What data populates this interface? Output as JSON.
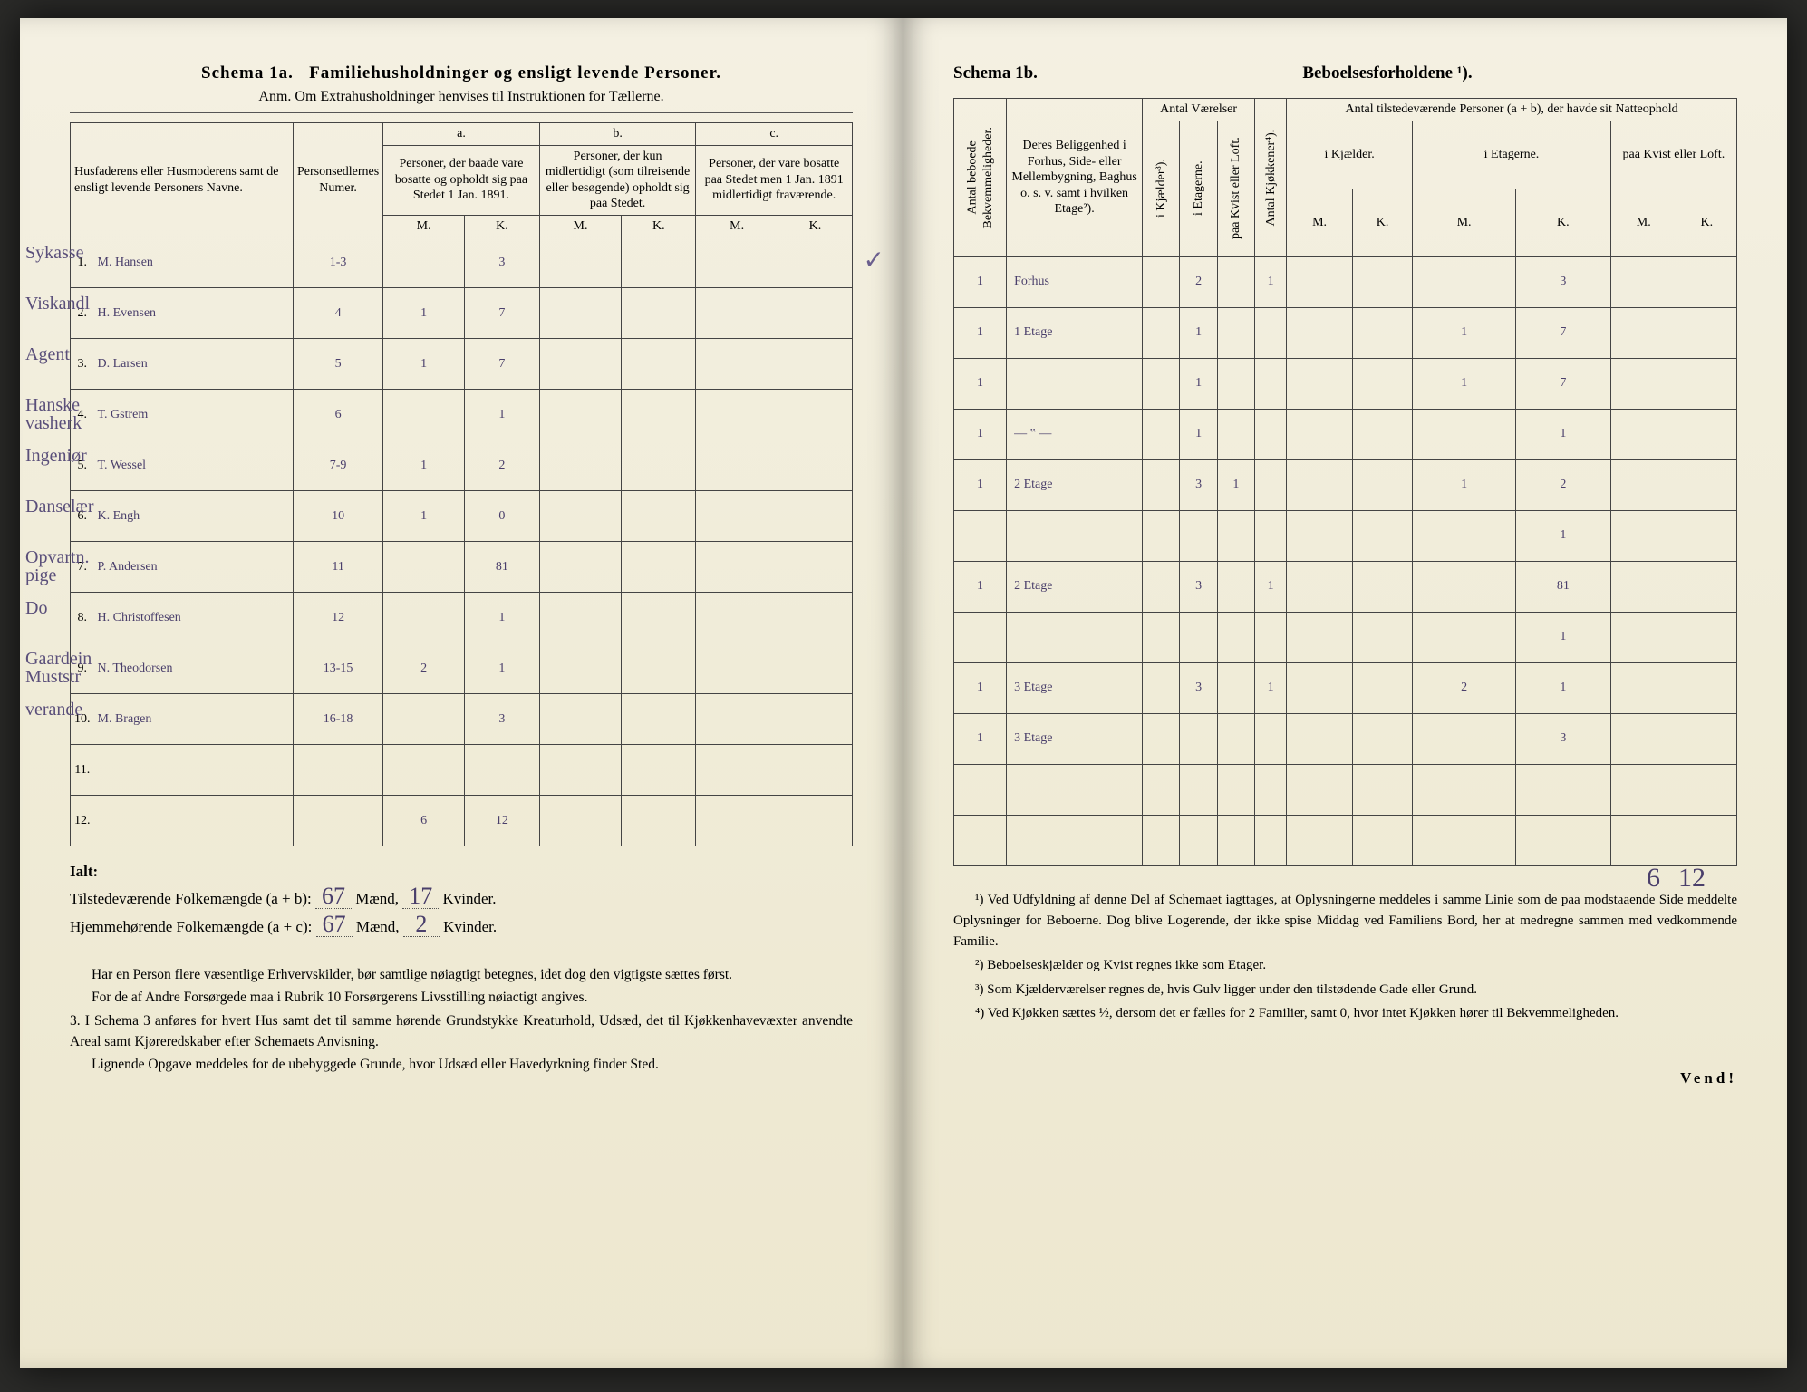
{
  "left": {
    "schema_label": "Schema 1a.",
    "schema_title": "Familiehusholdninger og ensligt levende Personer.",
    "anm": "Anm. Om Extrahusholdninger henvises til Instruktionen for Tællerne.",
    "headers": {
      "names": "Husfaderens eller Husmoderens samt de ensligt levende Personers Navne.",
      "person_num": "Personsedlernes Numer.",
      "a_label": "a.",
      "a": "Personer, der baade vare bosatte og opholdt sig paa Stedet 1 Jan. 1891.",
      "b_label": "b.",
      "b": "Personer, der kun midlertidigt (som tilreisende eller besøgende) opholdt sig paa Stedet.",
      "c_label": "c.",
      "c": "Personer, der vare bosatte paa Stedet men 1 Jan. 1891 midlertidigt fraværende.",
      "M": "M.",
      "K": "K."
    },
    "margin_notes": [
      "Sykasse",
      "Viskandl",
      "Agent",
      "Hanske\nvasherk",
      "Ingeniør",
      "Danselær",
      "Opvartn.\npige",
      "Do",
      "Gaardein\nMuststr",
      "verande"
    ],
    "rows": [
      {
        "n": "1.",
        "name": "M. Hansen",
        "num": "1-3",
        "aM": "",
        "aK": "3",
        "bM": "",
        "bK": "",
        "cM": "",
        "cK": ""
      },
      {
        "n": "2.",
        "name": "H. Evensen",
        "num": "4",
        "aM": "1",
        "aK": "7",
        "bM": "",
        "bK": "",
        "cM": "",
        "cK": ""
      },
      {
        "n": "3.",
        "name": "D. Larsen",
        "num": "5",
        "aM": "1",
        "aK": "7",
        "bM": "",
        "bK": "",
        "cM": "",
        "cK": ""
      },
      {
        "n": "4.",
        "name": "T. Gstrem",
        "num": "6",
        "aM": "",
        "aK": "1",
        "bM": "",
        "bK": "",
        "cM": "",
        "cK": ""
      },
      {
        "n": "5.",
        "name": "T. Wessel",
        "num": "7-9",
        "aM": "1",
        "aK": "2",
        "bM": "",
        "bK": "",
        "cM": "",
        "cK": ""
      },
      {
        "n": "6.",
        "name": "K. Engh",
        "num": "10",
        "aM": "1",
        "aK": "0",
        "bM": "",
        "bK": "",
        "cM": "",
        "cK": ""
      },
      {
        "n": "7.",
        "name": "P. Andersen",
        "num": "11",
        "aM": "",
        "aK": "81",
        "bM": "",
        "bK": "",
        "cM": "",
        "cK": ""
      },
      {
        "n": "8.",
        "name": "H. Christoffesen",
        "num": "12",
        "aM": "",
        "aK": "1",
        "bM": "",
        "bK": "",
        "cM": "",
        "cK": ""
      },
      {
        "n": "9.",
        "name": "N. Theodorsen",
        "num": "13-15",
        "aM": "2",
        "aK": "1",
        "bM": "",
        "bK": "",
        "cM": "",
        "cK": ""
      },
      {
        "n": "10.",
        "name": "M. Bragen",
        "num": "16-18",
        "aM": "",
        "aK": "3",
        "bM": "",
        "bK": "",
        "cM": "",
        "cK": ""
      },
      {
        "n": "11.",
        "name": "",
        "num": "",
        "aM": "",
        "aK": "",
        "bM": "",
        "bK": "",
        "cM": "",
        "cK": ""
      },
      {
        "n": "12.",
        "name": "",
        "num": "",
        "aM": "6",
        "aK": "12",
        "bM": "",
        "bK": "",
        "cM": "",
        "cK": ""
      }
    ],
    "ialt_label": "Ialt:",
    "tils_line_a": "Tilstedeværende Folkemængde (a + b):",
    "tils_m": "67",
    "tils_m_lbl": "Mænd,",
    "tils_k": "17",
    "tils_k_lbl": "Kvinder.",
    "hjem_line": "Hjemmehørende Folkemængde (a + c):",
    "hjem_m": "67",
    "hjem_k": "2",
    "body_p1": "Har en Person flere væsentlige Erhvervskilder, bør samtlige nøiagtigt betegnes, idet dog den vigtigste sættes først.",
    "body_p2": "For de af Andre Forsørgede maa i Rubrik 10 Forsørgerens Livsstilling nøiactigt angives.",
    "body_p3_num": "3.",
    "body_p3": "I Schema 3 anføres for hvert Hus samt det til samme hørende Grundstykke Kreaturhold, Udsæd, det til Kjøkkenhavevæxter anvendte Areal samt Kjøreredskaber efter Schemaets Anvisning.",
    "body_p4": "Lignende Opgave meddeles for de ubebyggede Grunde, hvor Udsæd eller Havedyrkning finder Sted.",
    "checkmark": "✓"
  },
  "right": {
    "schema_label": "Schema 1b.",
    "schema_title": "Beboelsesforholdene ¹).",
    "headers": {
      "antal_bek": "Antal beboede\nBekvemmeligheder.",
      "beligg": "Deres Beliggenhed i Forhus, Side- eller Mellembygning, Baghus o. s. v. samt i hvilken Etage²).",
      "antal_vaer": "Antal Værelser",
      "antal_kjok": "Antal Kjøkkener⁴).",
      "antal_pers": "Antal tilstedeværende Personer (a + b), der havde sit Natteophold",
      "i_kjeld": "i Kjælder³).",
      "i_etag": "i Etagerne.",
      "paa_kvist": "paa Kvist eller Loft.",
      "i_kjeld2": "i Kjælder.",
      "i_etag2": "i Etagerne.",
      "paa_kvist2": "paa Kvist eller Loft.",
      "M": "M.",
      "K": "K."
    },
    "rows": [
      {
        "bek": "1",
        "bel": "Forhus",
        "kj": "",
        "et": "2",
        "kv": "",
        "kjok": "1",
        "km": "",
        "kk": "",
        "em": "",
        "ek": "3",
        "lm": "",
        "lk": ""
      },
      {
        "bek": "1",
        "bel": "1 Etage",
        "kj": "",
        "et": "1",
        "kv": "",
        "kjok": "",
        "km": "",
        "kk": "",
        "em": "1",
        "ek": "7",
        "lm": "",
        "lk": ""
      },
      {
        "bek": "1",
        "bel": "",
        "kj": "",
        "et": "1",
        "kv": "",
        "kjok": "",
        "km": "",
        "kk": "",
        "em": "1",
        "ek": "7",
        "lm": "",
        "lk": ""
      },
      {
        "bek": "1",
        "bel": "— ‟ —",
        "kj": "",
        "et": "1",
        "kv": "",
        "kjok": "",
        "km": "",
        "kk": "",
        "em": "",
        "ek": "1",
        "lm": "",
        "lk": ""
      },
      {
        "bek": "1",
        "bel": "2 Etage",
        "kj": "",
        "et": "3",
        "kv": "1",
        "kjok": "",
        "km": "",
        "kk": "",
        "em": "1",
        "ek": "2",
        "lm": "",
        "lk": ""
      },
      {
        "bek": "",
        "bel": "",
        "kj": "",
        "et": "",
        "kv": "",
        "kjok": "",
        "km": "",
        "kk": "",
        "em": "",
        "ek": "1",
        "lm": "",
        "lk": ""
      },
      {
        "bek": "1",
        "bel": "2 Etage",
        "kj": "",
        "et": "3",
        "kv": "",
        "kjok": "1",
        "km": "",
        "kk": "",
        "em": "",
        "ek": "81",
        "lm": "",
        "lk": ""
      },
      {
        "bek": "",
        "bel": "",
        "kj": "",
        "et": "",
        "kv": "",
        "kjok": "",
        "km": "",
        "kk": "",
        "em": "",
        "ek": "1",
        "lm": "",
        "lk": ""
      },
      {
        "bek": "1",
        "bel": "3 Etage",
        "kj": "",
        "et": "3",
        "kv": "",
        "kjok": "1",
        "km": "",
        "kk": "",
        "em": "2",
        "ek": "1",
        "lm": "",
        "lk": ""
      },
      {
        "bek": "1",
        "bel": "3 Etage",
        "kj": "",
        "et": "",
        "kv": "",
        "kjok": "",
        "km": "",
        "kk": "",
        "em": "",
        "ek": "3",
        "lm": "",
        "lk": ""
      },
      {
        "bek": "",
        "bel": "",
        "kj": "",
        "et": "",
        "kv": "",
        "kjok": "",
        "km": "",
        "kk": "",
        "em": "",
        "ek": "",
        "lm": "",
        "lk": ""
      },
      {
        "bek": "",
        "bel": "",
        "kj": "",
        "et": "",
        "kv": "",
        "kjok": "",
        "km": "",
        "kk": "",
        "em": "",
        "ek": "",
        "lm": "",
        "lk": ""
      }
    ],
    "bottom_sum_m": "6",
    "bottom_sum_k": "12",
    "fn1": "¹) Ved Udfyldning af denne Del af Schemaet iagttages, at Oplysningerne meddeles i samme Linie som de paa modstaaende Side meddelte Oplysninger for Beboerne. Dog blive Logerende, der ikke spise Middag ved Familiens Bord, her at medregne sammen med vedkommende Familie.",
    "fn2": "²) Beboelseskjælder og Kvist regnes ikke som Etager.",
    "fn3": "³) Som Kjælderværelser regnes de, hvis Gulv ligger under den tilstødende Gade eller Grund.",
    "fn4": "⁴) Ved Kjøkken sættes ½, dersom det er fælles for 2 Familier, samt 0, hvor intet Kjøkken hører til Bekvemmeligheden.",
    "vend": "Vend!"
  },
  "colors": {
    "paper": "#f1edd9",
    "ink": "#333333",
    "handwriting": "#4a3f6b",
    "border": "#444444"
  }
}
